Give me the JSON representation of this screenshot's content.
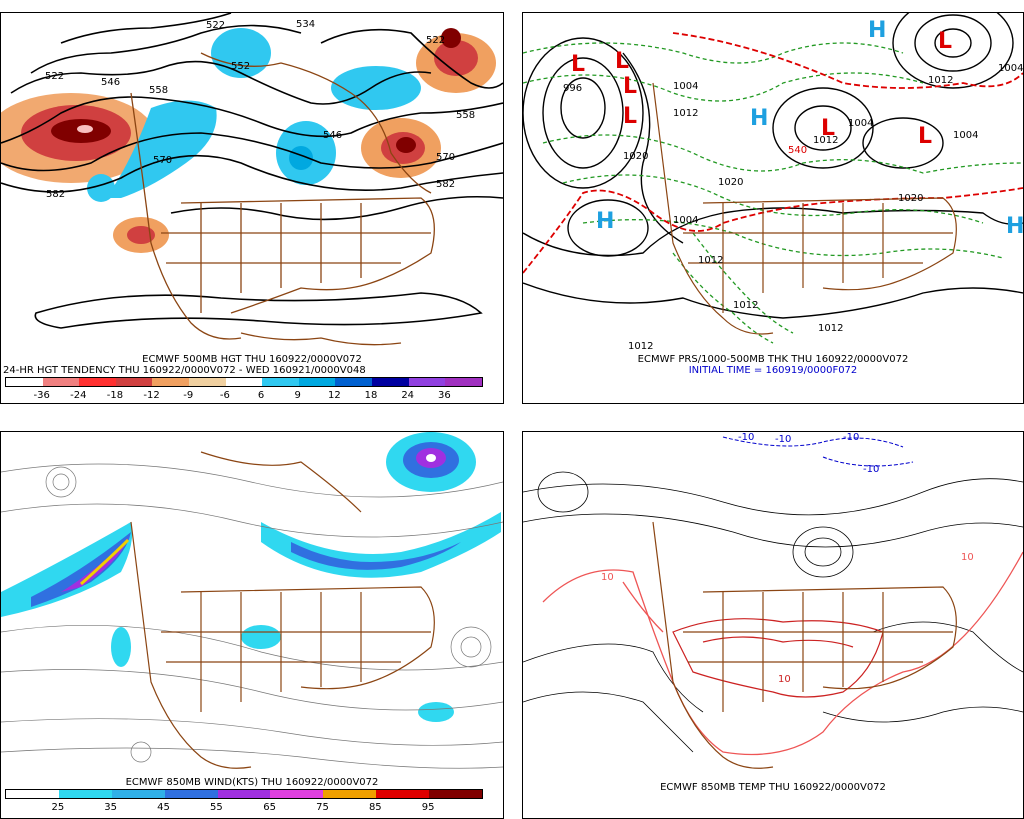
{
  "panels": {
    "hgt500": {
      "title": "ECMWF 500MB HGT THU 160922/0000V072",
      "subtitle": "24-HR HGT TENDENCY THU 160922/0000V072 - WED 160921/0000V048",
      "contour_labels": [
        "522",
        "534",
        "522",
        "552",
        "522",
        "546",
        "558",
        "546",
        "570",
        "558",
        "570",
        "582",
        "582"
      ],
      "tendency_scale": [
        "-36",
        "-24",
        "-18",
        "-12",
        "-9",
        "-6",
        "6",
        "9",
        "12",
        "18",
        "24",
        "36"
      ],
      "colors": [
        "#ffffff",
        "#f08080",
        "#ff3030",
        "#d04040",
        "#f0a060",
        "#f0d0a0",
        "#ffffff",
        "#30c8f0",
        "#00a8e0",
        "#0060d0",
        "#0000a0",
        "#9040e0",
        "#a030c0"
      ]
    },
    "prs_thk": {
      "title": "ECMWF PRS/1000-500MB THK THU 160922/0000V072",
      "init": "INITIAL TIME = 160919/0000F072",
      "pressure_labels": [
        "996",
        "1004",
        "1012",
        "1020",
        "1004",
        "1012",
        "1020",
        "1004",
        "1004",
        "1012",
        "1020",
        "1004",
        "1012",
        "1012",
        "1012",
        "1012"
      ],
      "thickness_labels": [
        "540"
      ],
      "center_letters": [
        "L",
        "L",
        "L",
        "L",
        "L",
        "L",
        "L",
        "H",
        "H",
        "H",
        "H"
      ]
    },
    "wind850": {
      "title": "ECMWF 850MB WIND(KTS) THU 160922/0000V072",
      "wind_scale": [
        "25",
        "35",
        "45",
        "55",
        "65",
        "75",
        "85",
        "95"
      ],
      "colors": [
        "#ffffff",
        "#30d8f0",
        "#30b0e8",
        "#3070e0",
        "#a030e0",
        "#e040e0",
        "#f0a000",
        "#e00000",
        "#800000"
      ]
    },
    "temp850": {
      "title": "ECMWF 850MB TEMP THU 160922/0000V072",
      "labels": [
        "10",
        "10",
        "-10",
        "-10",
        "-10",
        "-10",
        "10"
      ]
    }
  }
}
